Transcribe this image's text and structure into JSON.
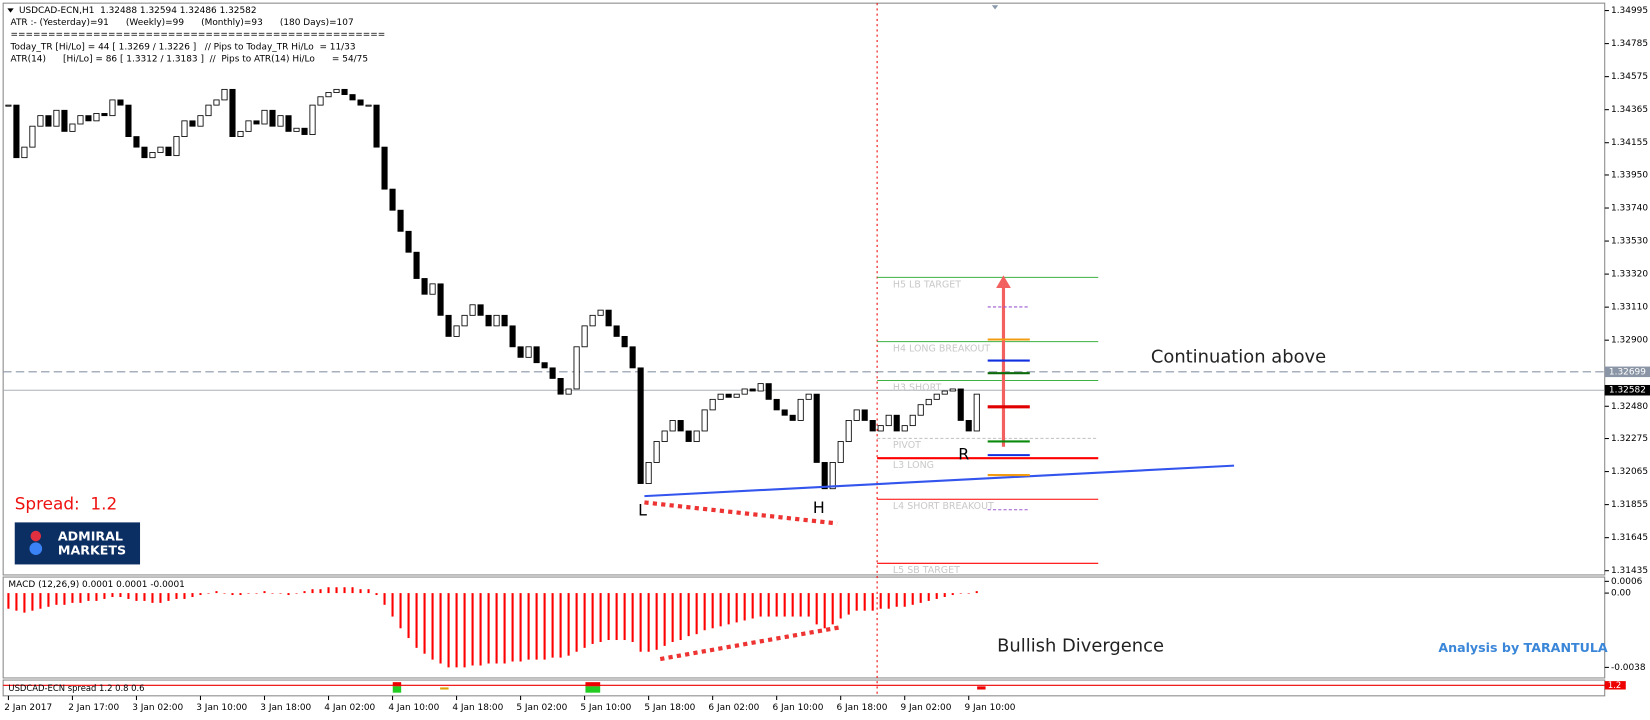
{
  "chart_data": {
    "type": "candlestick",
    "info_lines": [
      "USDCAD-ECN,H1  1.32488 1.32594 1.32486 1.32582",
      "ATR :- (Yesterday)=91      (Weekly)=99      (Monthly)=93      (180 Days)=107",
      "==================================================",
      "Today_TR [Hi/Lo] = 44 [ 1.3269 / 1.3226 ]   // Pips to Today_TR Hi/Lo  = 11/33",
      "ATR(14)      [Hi/Lo] = 86 [ 1.3312 / 1.3183 ]  //  Pips to ATR(14) Hi/Lo      = 54/75"
    ],
    "closes": [
      1.34394,
      1.3406,
      1.34127,
      1.3426,
      1.34327,
      1.3426,
      1.34361,
      1.34227,
      1.34274,
      1.34327,
      1.34294,
      1.34341,
      1.34327,
      1.34427,
      1.34394,
      1.34194,
      1.34127,
      1.3406,
      1.34093,
      1.34127,
      1.34073,
      1.34194,
      1.34294,
      1.3426,
      1.34327,
      1.34394,
      1.34427,
      1.34494,
      1.34194,
      1.34227,
      1.34294,
      1.34274,
      1.34361,
      1.3426,
      1.34327,
      1.34227,
      1.34247,
      1.34207,
      1.34394,
      1.34447,
      1.34474,
      1.34494,
      1.34461,
      1.34427,
      1.34394,
      1.34394,
      1.34127,
      1.3386,
      1.33726,
      1.33592,
      1.33459,
      1.33292,
      1.33192,
      1.33258,
      1.33058,
      1.32924,
      1.32991,
      1.33058,
      1.33125,
      1.33058,
      1.32991,
      1.33058,
      1.32991,
      1.32858,
      1.32791,
      1.32858,
      1.32757,
      1.32724,
      1.32657,
      1.32557,
      1.3259,
      1.32858,
      1.32991,
      1.33058,
      1.33091,
      1.32991,
      1.32924,
      1.32858,
      1.32724,
      1.31989,
      1.32123,
      1.32256,
      1.32323,
      1.3239,
      1.32323,
      1.32256,
      1.32323,
      1.32457,
      1.32524,
      1.32557,
      1.32537,
      1.32557,
      1.3259,
      1.32577,
      1.32624,
      1.32524,
      1.32457,
      1.32423,
      1.3239,
      1.32524,
      1.32557,
      1.32123,
      1.31956,
      1.32123,
      1.32256,
      1.3239,
      1.32457,
      1.3239,
      1.32323,
      1.32357,
      1.32423,
      1.32323,
      1.32357,
      1.32423,
      1.3249,
      1.32524,
      1.32557,
      1.32577,
      1.3259,
      1.3239,
      1.32323,
      1.32557
    ],
    "ylim": [
      1.31408,
      1.35042
    ],
    "yticks": [
      1.34995,
      1.34785,
      1.34575,
      1.34365,
      1.34155,
      {
        "value": 1.3395,
        "label": "1.33950"
      },
      {
        "value": 1.3374,
        "label": "1.33740"
      },
      {
        "value": 1.3353,
        "label": "1.33530"
      },
      {
        "value": 1.3332,
        "label": "1.33320"
      },
      {
        "value": 1.3311,
        "label": "1.33110"
      },
      {
        "value": 1.329,
        "label": "1.32900"
      },
      {
        "value": 1.3248,
        "label": "1.32480"
      },
      1.32275,
      1.32065,
      1.31855,
      1.31645,
      1.31435
    ],
    "xticks": [
      {
        "value": 0,
        "label": "2 Jan 2017"
      },
      {
        "value": 8,
        "label": "2 Jan 17:00"
      },
      {
        "value": 16,
        "label": "3 Jan 02:00"
      },
      {
        "value": 24,
        "label": "3 Jan 10:00"
      },
      {
        "value": 32,
        "label": "3 Jan 18:00"
      },
      {
        "value": 40,
        "label": "4 Jan 02:00"
      },
      {
        "value": 48,
        "label": "4 Jan 10:00"
      },
      {
        "value": 56,
        "label": "4 Jan 18:00"
      },
      {
        "value": 64,
        "label": "5 Jan 02:00"
      },
      {
        "value": 72,
        "label": "5 Jan 10:00"
      },
      {
        "value": 80,
        "label": "5 Jan 18:00"
      },
      {
        "value": 88,
        "label": "6 Jan 02:00"
      },
      {
        "value": 96,
        "label": "6 Jan 10:00"
      },
      {
        "value": 104,
        "label": "6 Jan 18:00"
      },
      {
        "value": 112,
        "label": "9 Jan 02:00"
      },
      {
        "value": 120,
        "label": "9 Jan 10:00"
      }
    ],
    "current_price": 1.32582,
    "dashed_price": 1.32699,
    "levels": [
      {
        "name": "H5 LB TARGET",
        "value": 1.33299,
        "color": "#3cb043"
      },
      {
        "name": "H4 LONG BREAKOUT",
        "value": 1.32891,
        "color": "#3cb043"
      },
      {
        "name": "H3 SHORT",
        "value": 1.32644,
        "color": "#3cb043"
      },
      {
        "name": "PIVOT",
        "value": 1.32276,
        "color": "#c0c0c0"
      },
      {
        "name": "L3 LONG",
        "value": 1.3215,
        "color": "#ff0000"
      },
      {
        "name": "L4 SHORT BREAKOUT",
        "value": 1.31889,
        "color": "#ff0000"
      },
      {
        "name": "L5 SB TARGET",
        "value": 1.31482,
        "color": "#ff0000"
      }
    ],
    "macd": {
      "label": "MACD (12,26,9) 0.0001 0.0001 -0.0001",
      "color": "#ff0000",
      "ylim": [
        -0.00434,
        0.00082
      ],
      "yticks": [
        0.0006,
        {
          "value": 0,
          "label": "0.00"
        },
        -0.0038
      ],
      "values": [
        -0.0008,
        -0.0009,
        -0.001,
        -0.0009,
        -0.0008,
        -0.0007,
        -0.0006,
        -0.0006,
        -0.0005,
        -0.0005,
        -0.0004,
        -0.0004,
        -0.0003,
        -0.0002,
        -0.0002,
        -0.0003,
        -0.0004,
        -0.0004,
        -0.0005,
        -0.0005,
        -0.0004,
        -0.0003,
        -0.0003,
        -0.0002,
        -0.0001,
        0.0,
        0.0001,
        0.0,
        -0.0001,
        -0.0001,
        0.0,
        0.0,
        0.0001,
        0.0,
        0.0,
        -0.0001,
        0.0,
        0.0001,
        0.0002,
        0.0002,
        0.0003,
        0.0003,
        0.0003,
        0.0003,
        0.0002,
        0.0002,
        -0.0001,
        -0.0006,
        -0.0012,
        -0.0018,
        -0.0023,
        -0.0028,
        -0.0031,
        -0.0034,
        -0.0036,
        -0.0038,
        -0.0038,
        -0.0038,
        -0.0037,
        -0.0037,
        -0.0036,
        -0.0036,
        -0.0036,
        -0.0035,
        -0.0035,
        -0.0034,
        -0.0034,
        -0.0034,
        -0.0033,
        -0.0033,
        -0.0032,
        -0.003,
        -0.0028,
        -0.0026,
        -0.0025,
        -0.0024,
        -0.0024,
        -0.0024,
        -0.0025,
        -0.003,
        -0.003,
        -0.0029,
        -0.0027,
        -0.0025,
        -0.0024,
        -0.0022,
        -0.0021,
        -0.0019,
        -0.0018,
        -0.0017,
        -0.0016,
        -0.0015,
        -0.0014,
        -0.0013,
        -0.0012,
        -0.0012,
        -0.0012,
        -0.0012,
        -0.0012,
        -0.0012,
        -0.0012,
        -0.0016,
        -0.0018,
        -0.0016,
        -0.0013,
        -0.0011,
        -0.0009,
        -0.0009,
        -0.0009,
        -0.0008,
        -0.0008,
        -0.0007,
        -0.0007,
        -0.0006,
        -0.0005,
        -0.0004,
        -0.0003,
        -0.0002,
        -0.0001,
        0.0,
        0.0,
        0.0001
      ]
    },
    "spread_panel": {
      "label": "USDCAD-ECN spread 1.2 0.8 0.6",
      "value_label": "1.2"
    },
    "spread_text": "Spread:  1.2",
    "logo": [
      "ADMIRAL",
      "MARKETS"
    ],
    "annotations": {
      "continuation": "Continuation above",
      "divergence": "Bullish Divergence",
      "credit": "Analysis by TARANTULA",
      "low": "L",
      "head": "H",
      "right": "R"
    }
  }
}
